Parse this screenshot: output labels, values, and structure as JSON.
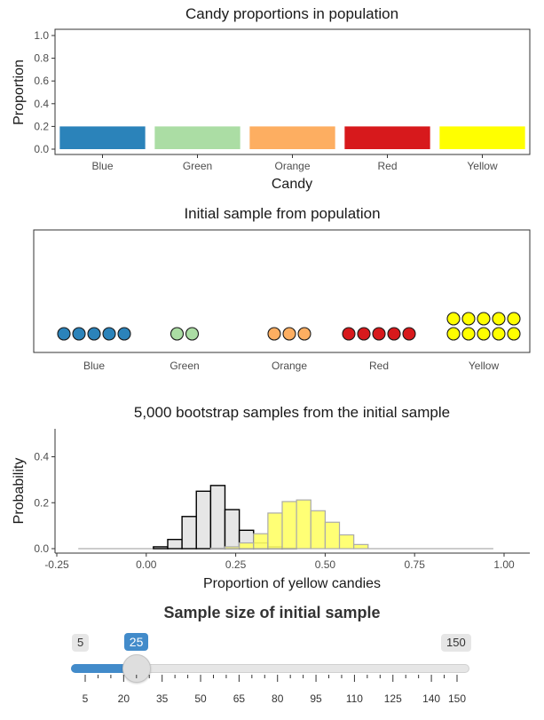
{
  "chart_data": [
    {
      "type": "bar",
      "title": "Candy proportions in population",
      "xlabel": "Candy",
      "ylabel": "Proportion",
      "categories": [
        "Blue",
        "Green",
        "Orange",
        "Red",
        "Yellow"
      ],
      "values": [
        0.2,
        0.2,
        0.2,
        0.2,
        0.2
      ],
      "colors": [
        "#2b83ba",
        "#abdda4",
        "#fdae61",
        "#d7191c",
        "#ffff00"
      ],
      "ylim": [
        0,
        1.0
      ],
      "yticks": [
        "0.0",
        "0.2",
        "0.4",
        "0.6",
        "0.8",
        "1.0"
      ],
      "grid": false
    },
    {
      "type": "scatter",
      "title": "Initial sample from population",
      "categories": [
        "Blue",
        "Green",
        "Orange",
        "Red",
        "Yellow"
      ],
      "counts": [
        5,
        2,
        3,
        5,
        10
      ],
      "colors": [
        "#2b83ba",
        "#abdda4",
        "#fdae61",
        "#d7191c",
        "#ffff00"
      ],
      "grid": false
    },
    {
      "type": "histogram",
      "title": "5,000 bootstrap samples from the initial sample",
      "xlabel": "Proportion of yellow candies",
      "ylabel": "Probability",
      "xlim": [
        -0.25,
        1.0
      ],
      "xticks": [
        "-0.25",
        "0.00",
        "0.25",
        "0.50",
        "0.75",
        "1.00"
      ],
      "ylim": [
        0,
        0.52
      ],
      "yticks": [
        "0.0",
        "0.2",
        "0.4"
      ],
      "bin_width": 0.04,
      "series": [
        {
          "fill": "#e6e6e6",
          "stroke": "#000000",
          "bin_centers": [
            0.04,
            0.08,
            0.12,
            0.16,
            0.2,
            0.24,
            0.28,
            0.32,
            0.36,
            0.4
          ],
          "values": [
            0.008,
            0.04,
            0.14,
            0.25,
            0.275,
            0.17,
            0.08,
            0.025,
            0.008,
            0.002
          ]
        },
        {
          "fill": "#ffff66",
          "stroke": "#aaaaaa",
          "bin_centers": [
            0.2,
            0.24,
            0.28,
            0.32,
            0.36,
            0.4,
            0.44,
            0.48,
            0.52,
            0.56,
            0.6
          ],
          "values": [
            0.002,
            0.008,
            0.025,
            0.065,
            0.155,
            0.205,
            0.212,
            0.165,
            0.115,
            0.06,
            0.018
          ]
        }
      ],
      "baseline_range": [
        -0.19,
        0.97
      ],
      "grid": false
    }
  ],
  "slider": {
    "title": "Sample size of initial sample",
    "min": 5,
    "max": 150,
    "value": 25,
    "min_label": "5",
    "max_label": "150",
    "value_label": "25",
    "tick_labels": [
      "5",
      "20",
      "35",
      "50",
      "65",
      "80",
      "95",
      "110",
      "125",
      "140",
      "150"
    ],
    "accent": "#428bca"
  }
}
